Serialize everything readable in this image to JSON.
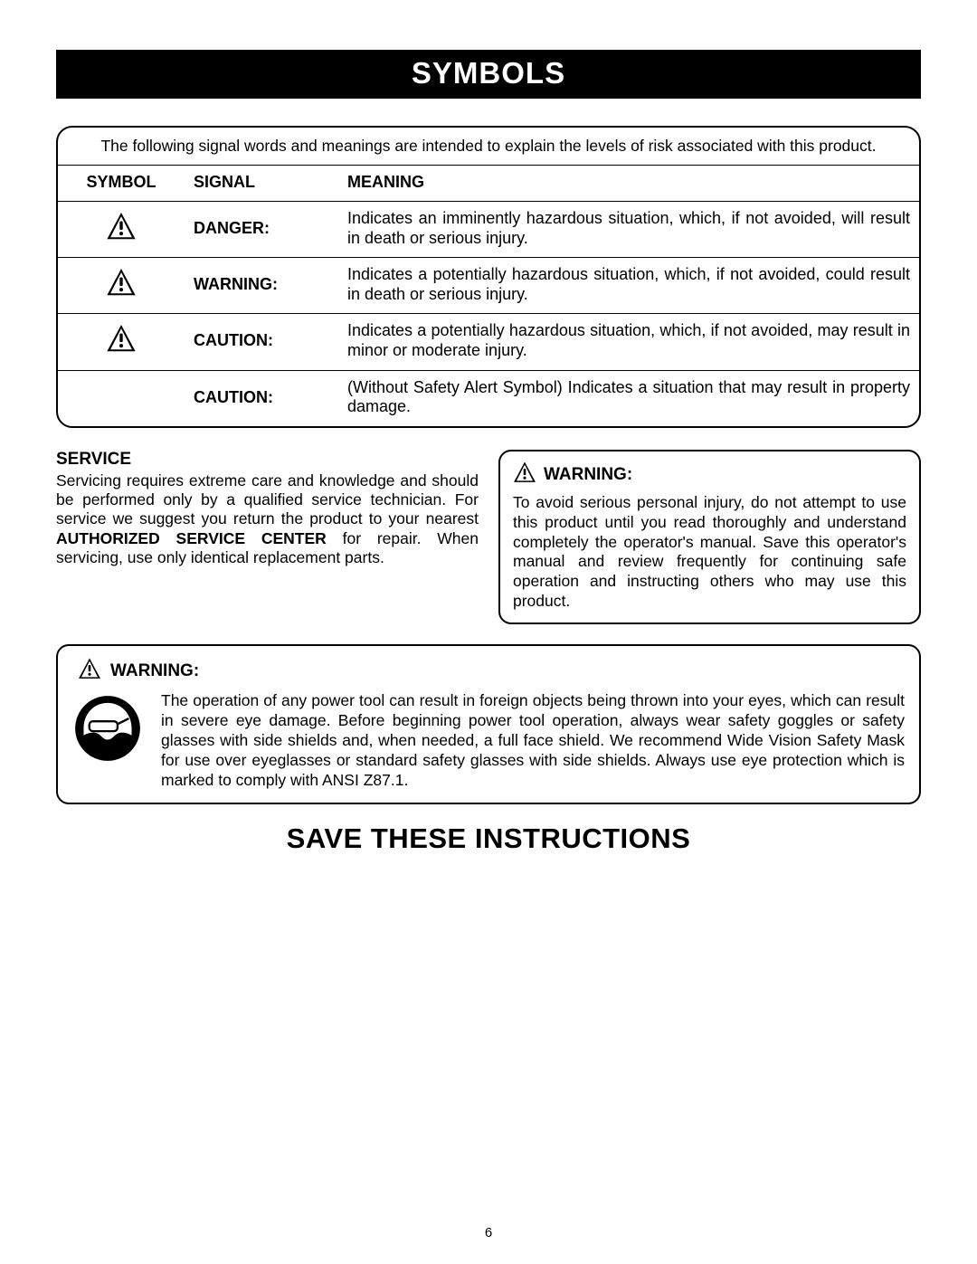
{
  "colors": {
    "title_bar_bg": "#000000",
    "title_bar_fg": "#ffffff",
    "page_bg": "#ffffff",
    "text": "#000000",
    "border": "#000000"
  },
  "title": "SYMBOLS",
  "intro": "The following signal words and meanings are intended to explain the levels of risk associated with this product.",
  "table": {
    "headers": {
      "symbol": "SYMBOL",
      "signal": "SIGNAL",
      "meaning": "MEANING"
    },
    "rows": [
      {
        "has_icon": true,
        "signal": "DANGER:",
        "meaning": "Indicates an imminently hazardous situation, which, if not avoided, will result in death or serious injury."
      },
      {
        "has_icon": true,
        "signal": "WARNING:",
        "meaning": "Indicates a potentially hazardous situation, which, if not avoided, could result in death or serious injury."
      },
      {
        "has_icon": true,
        "signal": "CAUTION:",
        "meaning": "Indicates a potentially hazardous situation, which, if not avoided, may result in minor or moderate injury."
      },
      {
        "has_icon": false,
        "signal": "CAUTION:",
        "meaning": "(Without Safety Alert Symbol) Indicates a situation that may result in property damage."
      }
    ]
  },
  "service": {
    "heading": "SERVICE",
    "body_pre": "Servicing requires extreme care and knowledge and should be performed only by a qualified service technician. For service we suggest you return the product to your nearest ",
    "body_bold": "AUTHORIZED SERVICE CENTER",
    "body_post": " for repair. When servicing, use only identical replacement parts."
  },
  "warning_right": {
    "heading": "WARNING:",
    "body": "To avoid serious personal injury, do not attempt to use this product until you read thoroughly and understand completely the operator's manual. Save this operator's manual and review frequently for continuing safe operation and instructing others who may use this product."
  },
  "warning_wide": {
    "heading": "WARNING:",
    "body": "The operation of any power tool can result in foreign objects being thrown into your eyes, which can result in severe eye damage. Before beginning power tool operation, always wear safety goggles or safety glasses with side shields and, when needed, a full face shield. We recommend Wide Vision Safety Mask for use over eyeglasses or standard safety glasses with side shields. Always use eye protection which is marked to comply with ANSI Z87.1."
  },
  "save": "SAVE THESE INSTRUCTIONS",
  "page_number": "6",
  "icons": {
    "alert_size_table": 34,
    "alert_size_inline": 26
  }
}
